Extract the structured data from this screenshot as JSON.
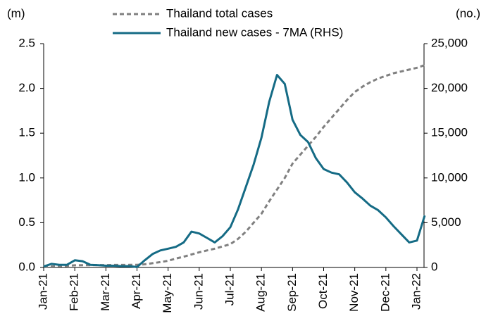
{
  "chart_data": {
    "type": "line",
    "y_label": "(m)",
    "y2_label": "(no.)",
    "categories": [
      "Jan-21",
      null,
      null,
      null,
      "Feb-21",
      null,
      null,
      null,
      "Mar-21",
      null,
      null,
      null,
      "Apr-21",
      null,
      null,
      null,
      "May-21",
      null,
      null,
      null,
      "Jun-21",
      null,
      null,
      null,
      "Jul-21",
      null,
      null,
      null,
      "Aug-21",
      null,
      null,
      null,
      "Sep-21",
      null,
      null,
      null,
      "Oct-21",
      null,
      null,
      null,
      "Nov-21",
      null,
      null,
      null,
      "Dec-21",
      null,
      null,
      null,
      "Jan-22",
      null
    ],
    "series": [
      {
        "name": "Thailand total cases",
        "color": "#808080",
        "dashed": true,
        "values": [
          0.01,
          0.012,
          0.014,
          0.018,
          0.024,
          0.025,
          0.026,
          0.027,
          0.027,
          0.028,
          0.028,
          0.029,
          0.029,
          0.035,
          0.048,
          0.06,
          0.075,
          0.1,
          0.12,
          0.145,
          0.17,
          0.19,
          0.21,
          0.235,
          0.26,
          0.32,
          0.4,
          0.5,
          0.6,
          0.74,
          0.87,
          1.0,
          1.16,
          1.26,
          1.36,
          1.46,
          1.57,
          1.67,
          1.77,
          1.87,
          1.96,
          2.02,
          2.07,
          2.11,
          2.14,
          2.17,
          2.19,
          2.21,
          2.23,
          2.26
        ]
      },
      {
        "name": "Thailand new cases - 7MA (RHS)",
        "color": "#156b85",
        "axis": "y2",
        "values": [
          100,
          400,
          300,
          300,
          800,
          700,
          300,
          250,
          200,
          200,
          150,
          150,
          50,
          800,
          1500,
          1900,
          2100,
          2300,
          2800,
          4000,
          3800,
          3300,
          2800,
          3500,
          4500,
          6500,
          9000,
          11500,
          14500,
          18500,
          21500,
          20500,
          16500,
          14800,
          14000,
          12200,
          11000,
          10600,
          10400,
          9500,
          8400,
          7700,
          6900,
          6400,
          5600,
          4600,
          3700,
          2800,
          3000,
          5800
        ]
      }
    ],
    "ylim": [
      0,
      2.5
    ],
    "yticks": [
      {
        "value": 0,
        "label": "0.0"
      },
      0.5,
      {
        "value": 1,
        "label": "1.0"
      },
      1.5,
      {
        "value": 2,
        "label": "2.0"
      },
      2.5
    ],
    "y2lim": [
      0,
      25000
    ],
    "y2ticks": [
      0,
      {
        "value": 5000,
        "label": "5,000"
      },
      {
        "value": 10000,
        "label": "10,000"
      },
      {
        "value": 15000,
        "label": "15,000"
      },
      {
        "value": 20000,
        "label": "20,000"
      },
      {
        "value": 25000,
        "label": "25,000"
      }
    ],
    "grid": false
  }
}
